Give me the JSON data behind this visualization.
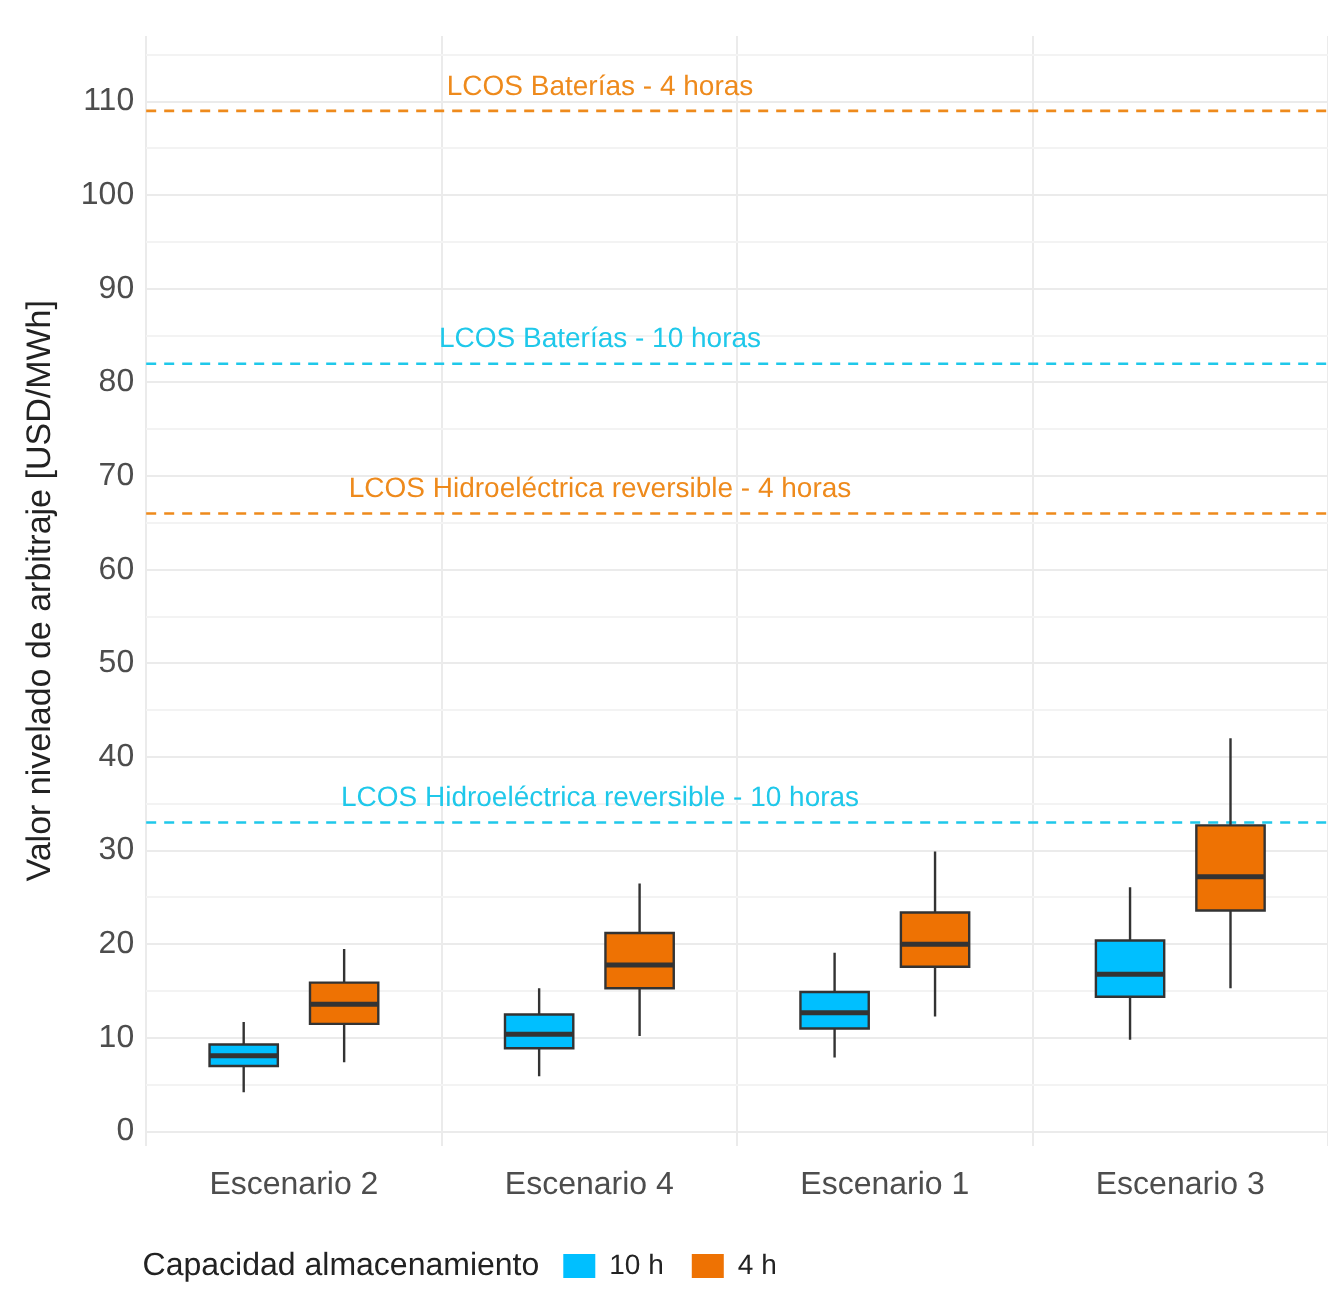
{
  "chart_data": {
    "type": "box",
    "ylabel": "Valor nivelado de arbitraje [USD/MWh]",
    "legend_title": "Capacidad almacenamiento",
    "categories": [
      "Escenario 2",
      "Escenario 4",
      "Escenario 1",
      "Escenario 3"
    ],
    "series": [
      {
        "name": "10 h",
        "color": "#00bfff",
        "boxes": [
          {
            "low": 4.2,
            "q1": 7.0,
            "median": 8.1,
            "q3": 9.3,
            "high": 11.7
          },
          {
            "low": 5.9,
            "q1": 8.9,
            "median": 10.4,
            "q3": 12.5,
            "high": 15.3
          },
          {
            "low": 7.9,
            "q1": 11.0,
            "median": 12.7,
            "q3": 14.9,
            "high": 19.1
          },
          {
            "low": 9.8,
            "q1": 14.4,
            "median": 16.8,
            "q3": 20.4,
            "high": 26.1
          }
        ]
      },
      {
        "name": "4 h",
        "color": "#ee7203",
        "boxes": [
          {
            "low": 7.4,
            "q1": 11.5,
            "median": 13.6,
            "q3": 15.9,
            "high": 19.5
          },
          {
            "low": 10.2,
            "q1": 15.3,
            "median": 17.8,
            "q3": 21.2,
            "high": 26.5
          },
          {
            "low": 12.3,
            "q1": 17.6,
            "median": 20.0,
            "q3": 23.4,
            "high": 29.9
          },
          {
            "low": 15.3,
            "q1": 23.6,
            "median": 27.2,
            "q3": 32.7,
            "high": 42.0
          }
        ]
      }
    ],
    "ylim": [
      -1.5,
      117
    ],
    "yticks": [
      0,
      {
        "value": 5,
        "label": null
      },
      10,
      {
        "value": 15,
        "label": null
      },
      20,
      {
        "value": 25,
        "label": null
      },
      30,
      {
        "value": 35,
        "label": null
      },
      40,
      {
        "value": 45,
        "label": null
      },
      50,
      {
        "value": 55,
        "label": null
      },
      60,
      {
        "value": 65,
        "label": null
      },
      70,
      {
        "value": 75,
        "label": null
      },
      80,
      {
        "value": 85,
        "label": null
      },
      90,
      {
        "value": 95,
        "label": null
      },
      100,
      {
        "value": 105,
        "label": null
      },
      110,
      {
        "value": 115,
        "label": null
      }
    ],
    "ref_lines": [
      {
        "axis": "y",
        "value": 109,
        "label": "LCOS Baterías - 4 horas",
        "color": "#ee8a1c",
        "line_style": "dashed"
      },
      {
        "axis": "y",
        "value": 82,
        "label": "LCOS Baterías - 10 horas",
        "color": "#1fc8ea",
        "line_style": "dashed"
      },
      {
        "axis": "y",
        "value": 66,
        "label": "LCOS Hidroeléctrica reversible - 4 horas",
        "color": "#ee8a1c",
        "line_style": "dashed"
      },
      {
        "axis": "y",
        "value": 33,
        "label": "LCOS Hidroeléctrica reversible - 10 horas",
        "color": "#1fc8ea",
        "line_style": "dashed"
      }
    ],
    "grid": true,
    "legend": "bottom"
  }
}
